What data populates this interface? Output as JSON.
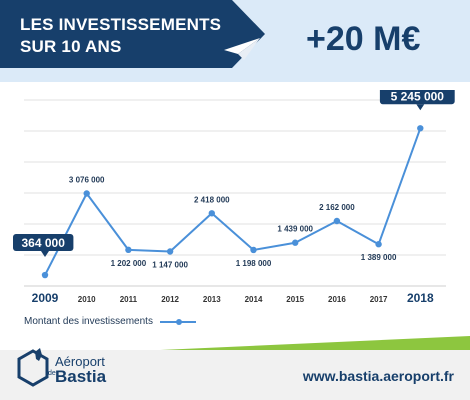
{
  "header": {
    "title_line1": "LES INVESTISSEMENTS",
    "title_line2": "SUR 10 ANS",
    "amount": "+20 M€"
  },
  "chart_data": {
    "type": "line",
    "categories": [
      "2009",
      "2010",
      "2011",
      "2012",
      "2013",
      "2014",
      "2015",
      "2016",
      "2017",
      "2018"
    ],
    "values": [
      364000,
      3076000,
      1202000,
      1147000,
      2418000,
      1198000,
      1439000,
      2162000,
      1389000,
      5245000
    ],
    "value_labels": [
      "364 000",
      "3 076 000",
      "1 202 000",
      "1 147 000",
      "2 418 000",
      "1 198 000",
      "1 439 000",
      "2 162 000",
      "1 389 000",
      "5 245 000"
    ],
    "highlighted_categories": [
      "2009",
      "2018"
    ],
    "series": [
      {
        "name": "Montant des investissements",
        "values": [
          364000,
          3076000,
          1202000,
          1147000,
          2418000,
          1198000,
          1439000,
          2162000,
          1389000,
          5245000
        ]
      }
    ],
    "ylim": [
      0,
      6000000
    ],
    "grid": true,
    "legend_position": "bottom-left",
    "colors": {
      "line": "#4a90d9",
      "point": "#4a90d9",
      "callout": "#173f6b",
      "text": "#233b58"
    }
  },
  "legend": {
    "label": "Montant des investissements"
  },
  "footer": {
    "logo_line1": "Aéroport",
    "logo_small": "de",
    "logo_line2": "Bastia",
    "url": "www.bastia.aeroport.fr"
  },
  "colors": {
    "brand_navy": "#173f6b",
    "header_bg": "#dbeaf8",
    "accent_green": "#8dc63f"
  }
}
